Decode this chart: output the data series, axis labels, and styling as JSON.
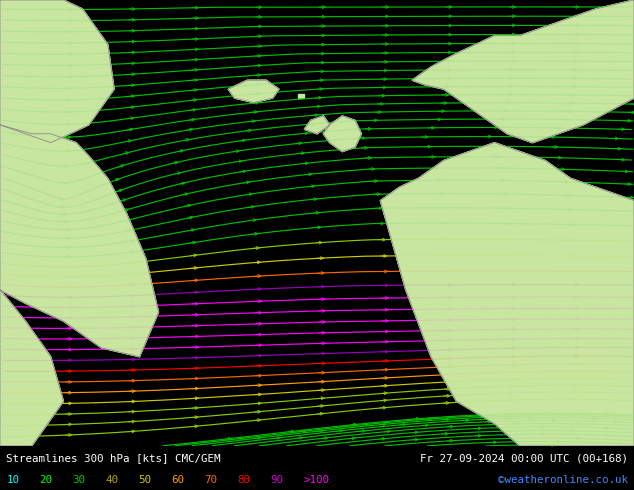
{
  "title_left": "Streamlines 300 hPa [kts] CMC/GEM",
  "title_right": "Fr 27-09-2024 00:00 UTC (00+168)",
  "credit": "©weatheronline.co.uk",
  "legend_values": [
    "10",
    "20",
    "30",
    "40",
    "50",
    "60",
    "70",
    "80",
    "90",
    ">100"
  ],
  "legend_colors": [
    "#00ffff",
    "#00ff00",
    "#00cc00",
    "#aaaa00",
    "#cccc00",
    "#ff9900",
    "#ff6600",
    "#ff0000",
    "#cc00cc",
    "#ff00ff"
  ],
  "bg_color": "#d0d8d0",
  "land_color": "#c8e6a0",
  "sea_color": "#d0d0d8",
  "figsize": [
    6.34,
    4.9
  ],
  "dpi": 100
}
